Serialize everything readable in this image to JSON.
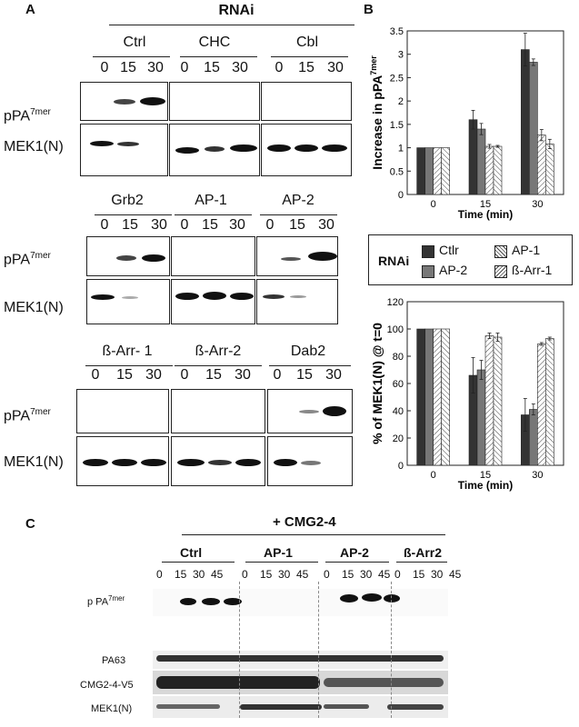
{
  "panels": {
    "A": "A",
    "B": "B",
    "C": "C"
  },
  "panelA": {
    "rnai_header": "RNAi",
    "time_points": [
      "0",
      "15",
      "30"
    ],
    "row_labels": {
      "ppa_base": "pPA",
      "ppa_sup": "7mer",
      "mek": "MEK1(N)"
    },
    "groups": [
      {
        "label": "Ctrl"
      },
      {
        "label": "CHC"
      },
      {
        "label": "Cbl"
      },
      {
        "label": "Grb2"
      },
      {
        "label": "AP-1"
      },
      {
        "label": "AP-2"
      },
      {
        "label": "ß-Arr- 1"
      },
      {
        "label": "ß-Arr-2"
      },
      {
        "label": "Dab2"
      }
    ]
  },
  "chart_data": [
    {
      "type": "bar",
      "ylabel_base": "Increase in pPA",
      "ylabel_sup": "7mer",
      "xlabel": "Time (min)",
      "categories": [
        "0",
        "15",
        "30"
      ],
      "ylim": [
        0,
        3.5
      ],
      "yticks": [
        "0",
        "0.5",
        "1",
        "1.5",
        "2",
        "2.5",
        "3",
        "3.5"
      ],
      "series": [
        {
          "name": "Ctlr",
          "values": [
            1,
            1.6,
            3.1
          ],
          "errors": [
            0,
            0.2,
            0.35
          ]
        },
        {
          "name": "AP-2",
          "values": [
            1,
            1.4,
            2.83
          ],
          "errors": [
            0,
            0.12,
            0.07
          ]
        },
        {
          "name": "AP-1",
          "values": [
            1,
            1.03,
            1.27
          ],
          "errors": [
            0,
            0.04,
            0.12
          ]
        },
        {
          "name": "ß-Arr-1",
          "values": [
            1,
            1.03,
            1.08
          ],
          "errors": [
            0,
            0.02,
            0.1
          ]
        }
      ]
    },
    {
      "type": "bar",
      "ylabel": "% of MEK1(N) @ t=0",
      "xlabel": "Time (min)",
      "categories": [
        "0",
        "15",
        "30"
      ],
      "ylim": [
        0,
        120
      ],
      "yticks": [
        "0",
        "20",
        "40",
        "60",
        "80",
        "100",
        "120"
      ],
      "series": [
        {
          "name": "Ctlr",
          "values": [
            100,
            66,
            37
          ],
          "errors": [
            0,
            13,
            12
          ]
        },
        {
          "name": "AP-2",
          "values": [
            100,
            70,
            41
          ],
          "errors": [
            0,
            7,
            4
          ]
        },
        {
          "name": "AP-1",
          "values": [
            100,
            95,
            89
          ],
          "errors": [
            0,
            2,
            1
          ]
        },
        {
          "name": "ß-Arr-1",
          "values": [
            100,
            94,
            93
          ],
          "errors": [
            0,
            3,
            1
          ]
        }
      ]
    }
  ],
  "legend": {
    "title": "RNAi",
    "items": [
      {
        "name": "Ctlr",
        "color": "#333333"
      },
      {
        "name": "AP-1",
        "color": "#ffffff",
        "hatch": true
      },
      {
        "name": "AP-2",
        "color": "#777777"
      },
      {
        "name": "ß-Arr-1",
        "color": "#ffffff",
        "hatch": true
      }
    ]
  },
  "panelC": {
    "header": "+ CMG2-4",
    "groups": [
      "Ctrl",
      "AP-1",
      "AP-2",
      "ß-Arr2"
    ],
    "time_points": [
      "0",
      "15",
      "30",
      "45"
    ],
    "row_labels": {
      "ppa_base": "p PA",
      "ppa_sup": "7mer",
      "pa63": "PA63",
      "cmg": "CMG2-4-V5",
      "mek": "MEK1(N)"
    }
  }
}
